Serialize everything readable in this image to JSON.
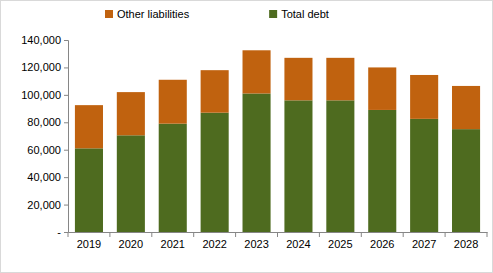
{
  "chart_data": {
    "type": "bar",
    "stacked": true,
    "grid": false,
    "legend": "top",
    "categories": [
      "2019",
      "2020",
      "2021",
      "2022",
      "2023",
      "2024",
      "2025",
      "2026",
      "2027",
      "2028"
    ],
    "series": [
      {
        "name": "Total debt",
        "color": "#4e6b1f",
        "values": [
          61000,
          70500,
          79000,
          87000,
          101000,
          96000,
          96000,
          89000,
          82500,
          75000
        ]
      },
      {
        "name": "Other liabilities",
        "color": "#c0620f",
        "values": [
          31500,
          31500,
          32000,
          31000,
          31500,
          31000,
          31000,
          31000,
          32000,
          31500
        ]
      }
    ],
    "ylim": [
      0,
      140000
    ],
    "yticks": [
      {
        "value": 0,
        "label": "-"
      },
      {
        "value": 20000,
        "label": "20,000"
      },
      {
        "value": 40000,
        "label": "40,000"
      },
      {
        "value": 60000,
        "label": "60,000"
      },
      {
        "value": 80000,
        "label": "80,000"
      },
      {
        "value": 100000,
        "label": "100,000"
      },
      {
        "value": 120000,
        "label": "120,000"
      },
      {
        "value": 140000,
        "label": "140,000"
      }
    ]
  }
}
